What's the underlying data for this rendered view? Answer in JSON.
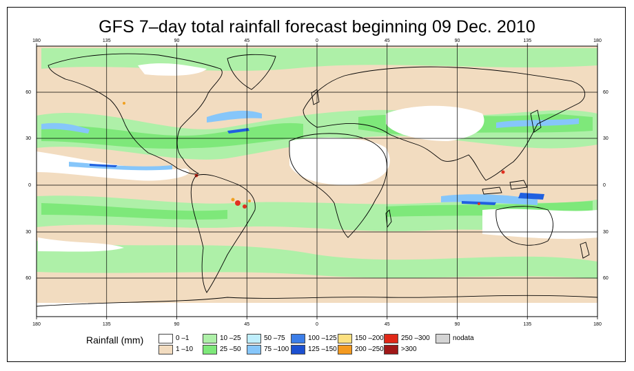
{
  "title": "GFS 7–day total rainfall forecast beginning 09 Dec. 2010",
  "map": {
    "projection": "equirectangular",
    "lon_ticks_top": [
      "180",
      "135",
      "90",
      "45",
      "0",
      "45",
      "90",
      "135",
      "180"
    ],
    "lon_ticks_bottom": [
      "180",
      "135",
      "90",
      "45",
      "0",
      "45",
      "90",
      "135",
      "180"
    ],
    "lat_ticks_left": [
      "60",
      "30",
      "0",
      "30",
      "60"
    ],
    "lat_ticks_right": [
      "60",
      "30",
      "0",
      "30",
      "60"
    ],
    "colors": {
      "ocean_low": "#f2dcc0",
      "zero": "#ffffff",
      "light": "#aef0a8",
      "mid": "#7ee87a",
      "heavy": "#a8e4f8",
      "heavier": "#5aa0f0",
      "extreme": "#2060e0",
      "peak": "#e03020",
      "peak2": "#f0a020"
    }
  },
  "legend": {
    "title": "Rainfall (mm)",
    "items": [
      {
        "label": "0 –1",
        "color": "#ffffff"
      },
      {
        "label": "1 –10",
        "color": "#f2dcc0"
      },
      {
        "label": "10 –25",
        "color": "#aef0a8"
      },
      {
        "label": "25 –50",
        "color": "#7ee87a"
      },
      {
        "label": "50 –75",
        "color": "#bfeefc"
      },
      {
        "label": "75 –100",
        "color": "#86c6fa"
      },
      {
        "label": "100 –125",
        "color": "#3c7ee8"
      },
      {
        "label": "125 –150",
        "color": "#1c50d0"
      },
      {
        "label": "150 –200",
        "color": "#fce080"
      },
      {
        "label": "200 –250",
        "color": "#f49a20"
      },
      {
        "label": "250 –300",
        "color": "#e02818"
      },
      {
        "label": ">300",
        "color": "#a01818"
      },
      {
        "label": "nodata",
        "color": "#d4d4d4"
      }
    ]
  }
}
